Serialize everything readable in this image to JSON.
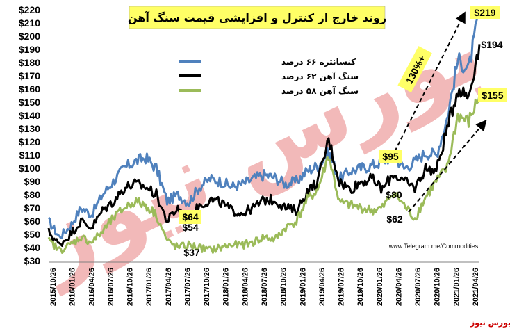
{
  "chart_data": {
    "type": "line",
    "title": "روند خارج از کنترل و افزایشی قیمت سنگ آهن",
    "xlabel": "",
    "ylabel": "",
    "ylim": [
      30,
      220
    ],
    "y_ticks": [
      "$30",
      "$40",
      "$50",
      "$60",
      "$70",
      "$80",
      "$90",
      "$100",
      "$110",
      "$120",
      "$130",
      "$140",
      "$150",
      "$160",
      "$170",
      "$180",
      "$190",
      "$200",
      "$210",
      "$220"
    ],
    "x_ticks": [
      "2015/10/26",
      "2016/01/26",
      "2016/04/26",
      "2016/07/26",
      "2016/10/26",
      "2017/01/26",
      "2017/04/26",
      "2017/07/26",
      "2017/10/26",
      "2018/01/26",
      "2018/04/26",
      "2018/07/26",
      "2018/10/26",
      "2019/01/26",
      "2019/04/26",
      "2019/07/26",
      "2019/10/26",
      "2020/01/26",
      "2020/04/26",
      "2020/07/26",
      "2020/10/26",
      "2021/01/26",
      "2021/04/26"
    ],
    "legend_position": "top-center",
    "grid": false,
    "series": [
      {
        "name": "کنسانتره ۶۶ درصد",
        "color": "#4f81bd",
        "values": [
          60,
          48,
          56,
          70,
          65,
          80,
          90,
          100,
          105,
          108,
          100,
          75,
          80,
          74,
          86,
          92,
          90,
          86,
          88,
          92,
          95,
          93,
          88,
          90,
          98,
          102,
          112,
          92,
          98,
          100,
          102,
          105,
          110,
          100,
          105,
          112,
          110,
          138,
          182,
          175,
          219
        ]
      },
      {
        "name": "سنگ آهن ۶۲ درصد",
        "color": "#000000",
        "values": [
          52,
          42,
          50,
          60,
          55,
          68,
          75,
          85,
          88,
          86,
          80,
          60,
          70,
          62,
          72,
          76,
          74,
          68,
          66,
          70,
          76,
          76,
          70,
          68,
          82,
          90,
          122,
          90,
          84,
          90,
          92,
          84,
          96,
          90,
          85,
          100,
          98,
          130,
          160,
          155,
          194
        ]
      },
      {
        "name": "سنگ آهن ۵۸ درصد",
        "color": "#9bbb59",
        "values": [
          45,
          38,
          42,
          48,
          44,
          52,
          62,
          70,
          75,
          72,
          65,
          45,
          40,
          42,
          40,
          38,
          40,
          42,
          42,
          44,
          48,
          46,
          55,
          60,
          76,
          84,
          110,
          74,
          72,
          70,
          68,
          70,
          82,
          72,
          62,
          78,
          90,
          100,
          140,
          135,
          155
        ]
      }
    ],
    "annotations": [
      {
        "text": "$219"
      },
      {
        "text": "$194"
      },
      {
        "text": "$155"
      },
      {
        "text": "$95"
      },
      {
        "text": "$80"
      },
      {
        "text": "$62"
      },
      {
        "text": "$64"
      },
      {
        "text": "$54"
      },
      {
        "text": "$37"
      },
      {
        "text": "130%+"
      }
    ],
    "colors": {
      "title_bg": "#ffff66",
      "highlight_bg": "#ffff66",
      "watermark": "#e88080",
      "source_text": "#cc0000"
    }
  },
  "watermark_text": "بورس نیوز",
  "url": "www.Telegram.me/Commodities",
  "source_label": "بورس نیوز"
}
